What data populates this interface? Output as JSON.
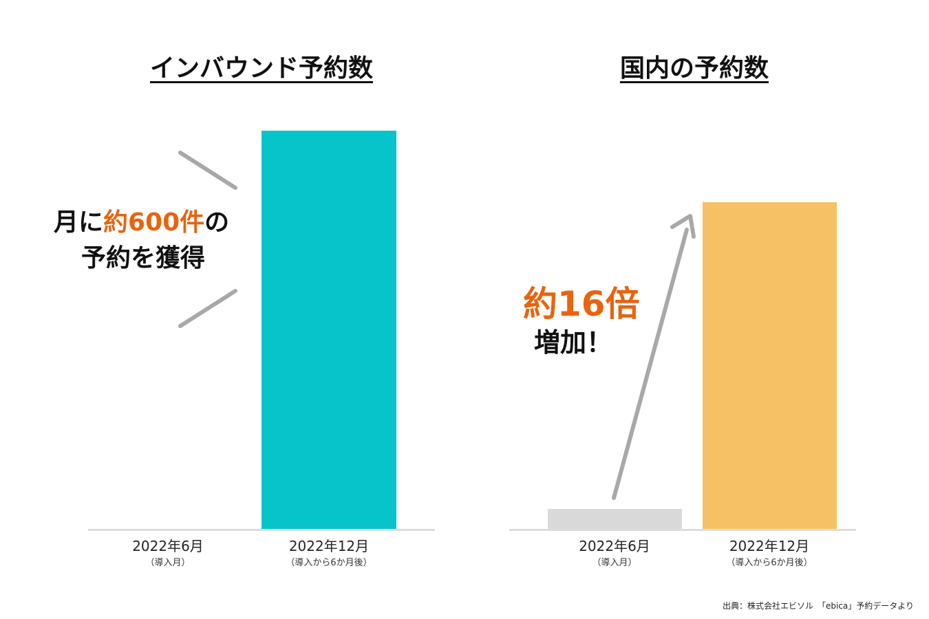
{
  "chart_data": [
    {
      "type": "bar",
      "title": "インバウンド予約数",
      "categories": [
        "2022年6月",
        "2022年12月"
      ],
      "category_notes": [
        "（導入月）",
        "（導入から6か月後）"
      ],
      "values": [
        0,
        600
      ],
      "color": "#07c3ca",
      "annotation": {
        "part1": "月に",
        "highlight": "約600件",
        "part2": "の",
        "line2": "予約を獲得"
      }
    },
    {
      "type": "bar",
      "title": "国内の予約数",
      "categories": [
        "2022年6月",
        "2022年12月"
      ],
      "category_notes": [
        "（導入月）",
        "（導入から6か月後）"
      ],
      "values": [
        1,
        16
      ],
      "colors": [
        "#d9d9d9",
        "#f5c164"
      ],
      "annotation": {
        "highlight": "約16倍",
        "line2": "増加！"
      }
    }
  ],
  "colors": {
    "accent": "#e8640f",
    "baseline": "#dcdcdc",
    "decoration": "#a8a8a8"
  },
  "source": "出典：株式会社エビソル　「ebica」予約データより"
}
